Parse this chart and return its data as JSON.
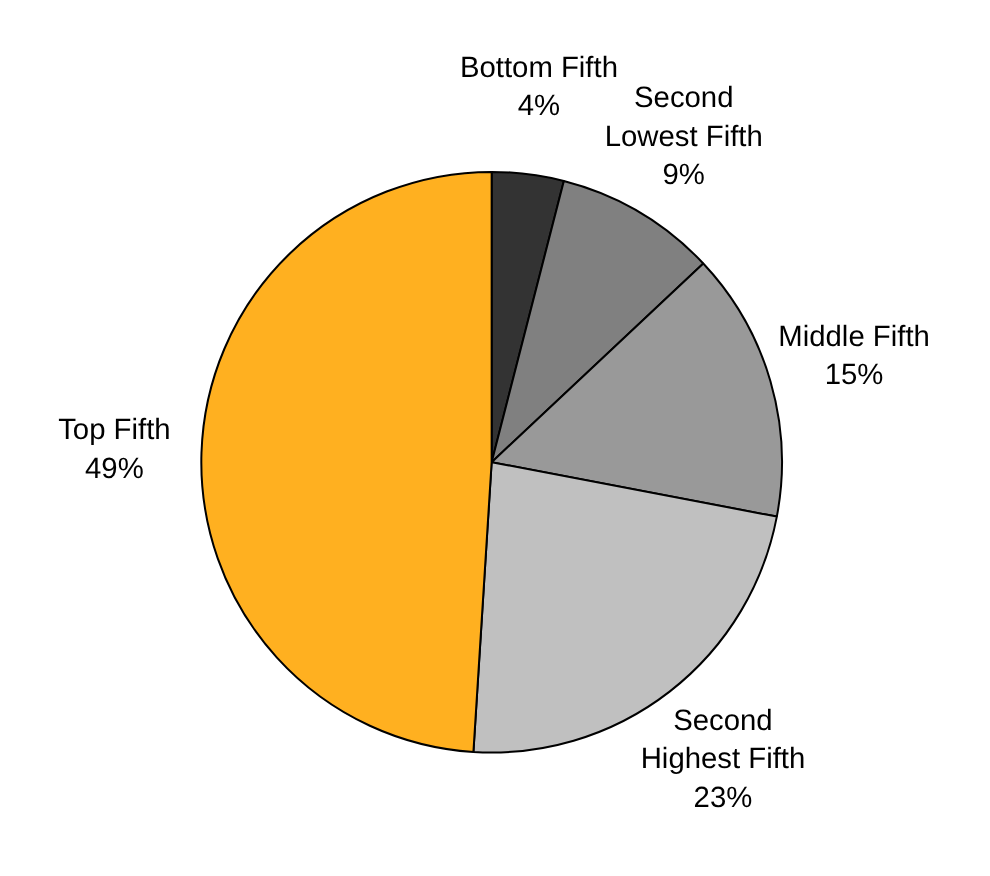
{
  "chart_data": {
    "type": "pie",
    "categories": [
      "Bottom Fifth",
      "Second\nLowest Fifth",
      "Middle Fifth",
      "Second\nHighest Fifth",
      "Top Fifth"
    ],
    "values": [
      4,
      9,
      15,
      23,
      49
    ],
    "value_labels": [
      "4%",
      "9%",
      "15%",
      "23%",
      "49%"
    ],
    "colors": [
      "#333333",
      "#808080",
      "#999999",
      "#c0c0c0",
      "#ffb020"
    ]
  }
}
